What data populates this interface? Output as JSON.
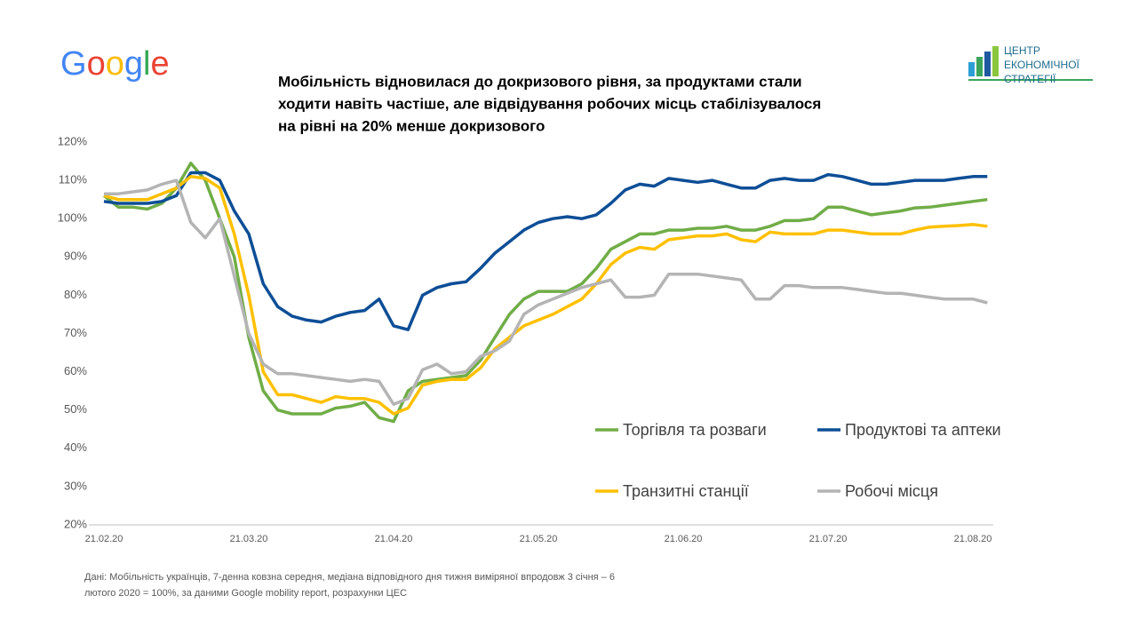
{
  "google_logo": "Google",
  "ces_logo": [
    "ЦЕНТР",
    "ЕКОНОМІЧНОЇ",
    "СТРАТЕГІЇ"
  ],
  "footnote": [
    "Дані: Мобільність українців, 7-денна ковзна середня, медіана відповідного дня тижня виміряної впродовж 3 січня – 6",
    "лютого 2020 = 100%, за даними Google mobility report, розрахунки ЦЕС"
  ],
  "chart_data": {
    "type": "line",
    "title": [
      "Мобільність відновилася до докризового рівня, за продуктами стали",
      "ходити навіть частіше, але відвідування робочих місць стабілізувалося",
      "на рівні на 20% менше докризового"
    ],
    "categories": [
      "21.02.20",
      null,
      null,
      null,
      null,
      null,
      null,
      null,
      null,
      null,
      "21.03.20",
      null,
      null,
      null,
      null,
      null,
      null,
      null,
      null,
      null,
      "21.04.20",
      null,
      null,
      null,
      null,
      null,
      null,
      null,
      null,
      null,
      "21.05.20",
      null,
      null,
      null,
      null,
      null,
      null,
      null,
      null,
      null,
      "21.06.20",
      null,
      null,
      null,
      null,
      null,
      null,
      null,
      null,
      null,
      "21.07.20",
      null,
      null,
      null,
      null,
      null,
      null,
      null,
      null,
      null,
      "21.08.20",
      null
    ],
    "ylim": [
      20,
      120
    ],
    "yticks": [
      {
        "value": 20,
        "label": "20%"
      },
      {
        "value": 30,
        "label": "30%"
      },
      {
        "value": 40,
        "label": "40%"
      },
      {
        "value": 50,
        "label": "50%"
      },
      {
        "value": 60,
        "label": "60%"
      },
      {
        "value": 70,
        "label": "70%"
      },
      {
        "value": 80,
        "label": "80%"
      },
      {
        "value": 90,
        "label": "90%"
      },
      {
        "value": 100,
        "label": "100%"
      },
      {
        "value": 110,
        "label": "110%"
      },
      {
        "value": 120,
        "label": "120%"
      }
    ],
    "grid": false,
    "legend": "lower-right",
    "series": [
      {
        "name": "Торгівля та розваги",
        "color": "#70ad47",
        "values": [
          106,
          103,
          103,
          102.5,
          104,
          108,
          114.5,
          110,
          100,
          90,
          69,
          55,
          50,
          49,
          49,
          49,
          50.5,
          51,
          52,
          48,
          47,
          55,
          57.5,
          58,
          58.5,
          59,
          63,
          69,
          75,
          79,
          81,
          81,
          81,
          83,
          87,
          92,
          94,
          96,
          96,
          97,
          97,
          97.5,
          97.5,
          98,
          97,
          97,
          98,
          99.5,
          99.5,
          100,
          103,
          103,
          102,
          101,
          101.5,
          102,
          102.8,
          103,
          103.5,
          104,
          104.5,
          105
        ]
      },
      {
        "name": "Продуктові та аптеки",
        "color": "#0d4e96",
        "values": [
          104.5,
          104,
          104,
          104,
          104.5,
          106,
          112,
          112,
          110,
          102,
          96,
          83,
          77,
          74.5,
          73.5,
          73,
          74.5,
          75.5,
          76,
          79,
          72,
          71,
          80,
          82,
          83,
          83.5,
          87,
          91,
          94,
          97,
          99,
          100,
          100.5,
          100,
          101,
          104,
          107.5,
          109,
          108.5,
          110.5,
          110,
          109.5,
          110,
          109,
          108,
          108,
          110,
          110.5,
          110,
          110,
          111.5,
          111,
          110,
          109,
          109,
          109.5,
          110,
          110,
          110,
          110.5,
          111,
          111
        ]
      },
      {
        "name": "Транзитні станції",
        "color": "#ffc000",
        "values": [
          106,
          105,
          105,
          105,
          106.5,
          108,
          111,
          110.5,
          108,
          96,
          80,
          60,
          54,
          54,
          53,
          52,
          53.5,
          53,
          53,
          52,
          49,
          50.5,
          56.5,
          57.5,
          58,
          58,
          61,
          66,
          69,
          72,
          73.5,
          75,
          77,
          79,
          83,
          88,
          91,
          92.5,
          92,
          94.5,
          95,
          95.5,
          95.5,
          96,
          94.5,
          94,
          96.5,
          96,
          96,
          96,
          97,
          97,
          96.5,
          96,
          96,
          96,
          97,
          97.8,
          98,
          98.2,
          98.5,
          98
        ]
      },
      {
        "name": "Робочі місця",
        "color": "#b4b4b4",
        "values": [
          106.5,
          106.5,
          107,
          107.5,
          109,
          110,
          99,
          95,
          100,
          85,
          70,
          62,
          59.5,
          59.5,
          59,
          58.5,
          58,
          57.5,
          58,
          57.5,
          51.5,
          53,
          60.5,
          62,
          59.5,
          60,
          64,
          65.5,
          68,
          75,
          77.5,
          79,
          80.5,
          82,
          83,
          84,
          79.5,
          79.5,
          80,
          85.5,
          85.5,
          85.5,
          85,
          84.5,
          84,
          79,
          79,
          82.5,
          82.5,
          82,
          82,
          82,
          81.5,
          81,
          80.5,
          80.5,
          80,
          79.5,
          79,
          79,
          79,
          78
        ]
      }
    ]
  }
}
